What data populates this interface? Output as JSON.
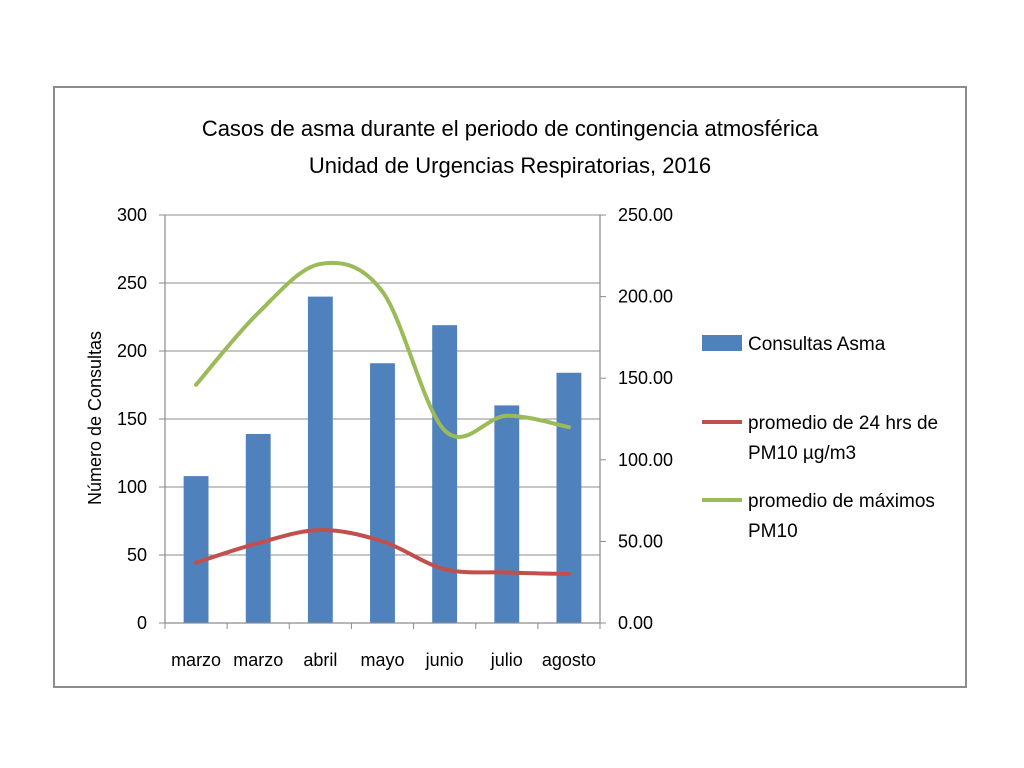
{
  "chart_data": {
    "type": "bar",
    "title": "Casos de asma durante el periodo de contingencia atmosférica",
    "subtitle": "Unidad de Urgencias Respiratorias, 2016",
    "categories": [
      "marzo",
      "marzo",
      "abril",
      "mayo",
      "junio",
      "julio",
      "agosto"
    ],
    "ylabel": "Número de Consultas",
    "ylim": [
      0,
      300
    ],
    "y_ticks": [
      "0",
      "50",
      "100",
      "150",
      "200",
      "250",
      "300"
    ],
    "y2lim": [
      0,
      250
    ],
    "y2_ticks": [
      "0.00",
      "50.00",
      "100.00",
      "150.00",
      "200.00",
      "250.00"
    ],
    "grid": true,
    "legend_position": "right",
    "series": [
      {
        "name": "Consultas Asma",
        "type": "bar",
        "axis": "left",
        "color": "#4f81bd",
        "values": [
          108,
          139,
          240,
          191,
          219,
          160,
          184
        ]
      },
      {
        "name": "promedio de 24 hrs de PM10 µg/m3",
        "legend_lines": [
          "promedio de 24 hrs de",
          "PM10 µg/m3"
        ],
        "type": "line",
        "axis": "right",
        "color": "#c0504d",
        "values": [
          37,
          49,
          57,
          50,
          33,
          31,
          30
        ]
      },
      {
        "name": "promedio de máximos PM10",
        "legend_lines": [
          "promedio de máximos",
          "PM10"
        ],
        "type": "line",
        "axis": "right",
        "color": "#9bbb59",
        "values": [
          146,
          190,
          220,
          203,
          118,
          127,
          120
        ]
      }
    ]
  }
}
